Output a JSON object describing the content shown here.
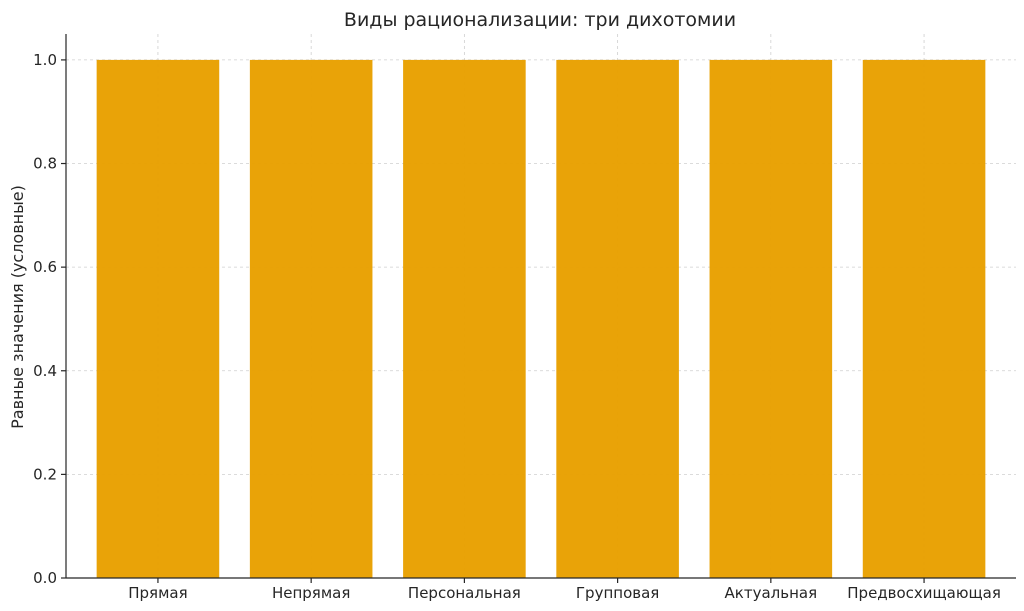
{
  "chart_data": {
    "type": "bar",
    "title": "Виды рационализации: три дихотомии",
    "xlabel": "",
    "ylabel": "Равные значения (условные)",
    "categories": [
      "Прямая",
      "Непрямая",
      "Персональная",
      "Групповая",
      "Актуальная",
      "Предвосхищающая"
    ],
    "values": [
      1.0,
      1.0,
      1.0,
      1.0,
      1.0,
      1.0
    ],
    "ylim": [
      0,
      1.05
    ],
    "yticks": [
      0.0,
      0.2,
      0.4,
      0.6,
      0.8,
      1.0
    ],
    "ytick_labels": [
      "0.0",
      "0.2",
      "0.4",
      "0.6",
      "0.8",
      "1.0"
    ],
    "grid": true,
    "legend": "none",
    "bar_color": "#E8A000"
  }
}
